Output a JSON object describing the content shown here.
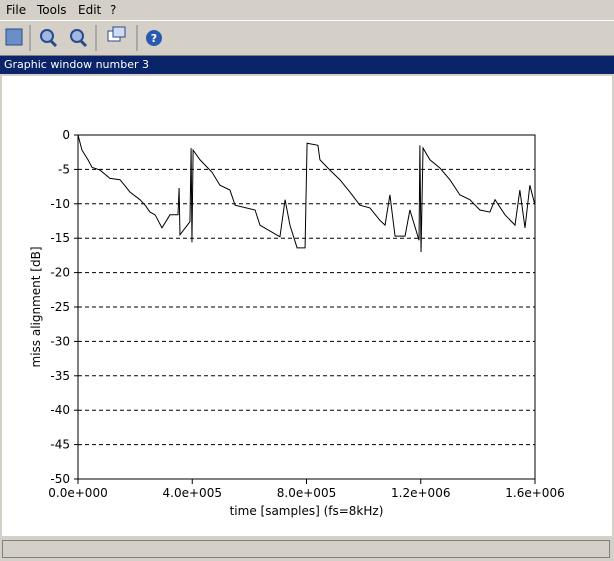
{
  "menu": [
    "File",
    "Tools",
    "Edit",
    "?"
  ],
  "window_title": "Graphic window number 3",
  "chart_data": {
    "type": "line",
    "xlabel": "time [samples] (fs=8kHz)",
    "ylabel": "miss alignment [dB]",
    "color": "#000000",
    "grid": true,
    "xlim": [
      0,
      1600000
    ],
    "ylim": [
      -50,
      0
    ],
    "xticks": [
      {
        "value": 0,
        "label": "0.0e+000"
      },
      {
        "value": 400000,
        "label": "4.0e+005"
      },
      {
        "value": 800000,
        "label": "8.0e+005"
      },
      {
        "value": 1200000,
        "label": "1.2e+006"
      },
      {
        "value": 1600000,
        "label": "1.6e+006"
      }
    ],
    "yticks": [
      0,
      -5,
      -10,
      -15,
      -20,
      -25,
      -30,
      -35,
      -40,
      -45,
      -50
    ],
    "x": [
      0,
      14000,
      35000,
      49000,
      77000,
      112000,
      147000,
      165000,
      182000,
      217000,
      235000,
      252000,
      270000,
      294000,
      322000,
      350000,
      354000,
      357000,
      392000,
      396000,
      399000,
      403000,
      427000,
      469000,
      497000,
      532000,
      550000,
      620000,
      637000,
      707000,
      725000,
      742000,
      767000,
      795000,
      802000,
      840000,
      847000,
      882000,
      917000,
      952000,
      987000,
      1022000,
      1057000,
      1075000,
      1092000,
      1110000,
      1145000,
      1162000,
      1194000,
      1197000,
      1201000,
      1208000,
      1232000,
      1267000,
      1302000,
      1337000,
      1372000,
      1407000,
      1442000,
      1460000,
      1495000,
      1530000,
      1547000,
      1565000,
      1582000,
      1600000
    ],
    "values": [
      0,
      -2.2,
      -3.6,
      -4.7,
      -5.1,
      -6.3,
      -6.5,
      -7.4,
      -8.3,
      -9.4,
      -10.2,
      -11.2,
      -11.6,
      -13.5,
      -11.6,
      -11.6,
      -7.7,
      -14.5,
      -12.6,
      -1.9,
      -15.6,
      -2.2,
      -3.6,
      -5.4,
      -7.3,
      -8.0,
      -10.2,
      -10.9,
      -13.1,
      -14.8,
      -9.4,
      -13.1,
      -16.4,
      -16.4,
      -1.2,
      -1.5,
      -3.6,
      -5.1,
      -6.5,
      -8.3,
      -10.2,
      -10.6,
      -12.4,
      -13.1,
      -8.7,
      -14.7,
      -14.7,
      -10.9,
      -15.3,
      -1.5,
      -17.0,
      -1.9,
      -3.6,
      -4.8,
      -6.5,
      -8.7,
      -9.4,
      -10.9,
      -11.2,
      -9.4,
      -11.6,
      -13.1,
      -8.0,
      -13.5,
      -7.3,
      -10.2
    ]
  }
}
